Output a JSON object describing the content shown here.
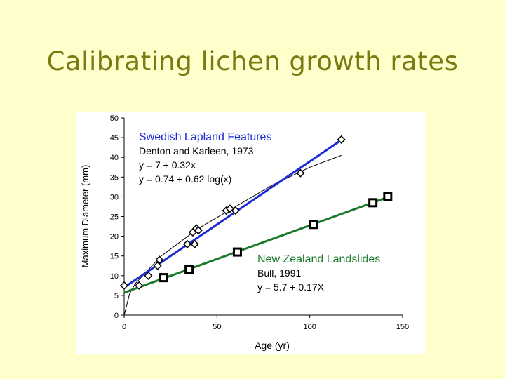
{
  "slide": {
    "title": "Calibrating lichen growth rates"
  },
  "chart_data": {
    "type": "scatter",
    "xlabel": "Age (yr)",
    "ylabel": "Maximum Diameter (mm)",
    "xlim": [
      0,
      150
    ],
    "ylim": [
      0,
      50
    ],
    "xticks": [
      "0",
      "50",
      "100",
      "150"
    ],
    "yticks": [
      "0",
      "5",
      "10",
      "15",
      "20",
      "25",
      "30",
      "35",
      "40",
      "45",
      "50"
    ],
    "grid": false,
    "series": [
      {
        "name": "Swedish Lapland Features",
        "marker": "diamond",
        "color": "#1a2bd6",
        "points": [
          [
            0,
            7.5
          ],
          [
            8,
            7.5
          ],
          [
            13,
            10
          ],
          [
            18,
            12.5
          ],
          [
            19,
            14
          ],
          [
            34,
            18
          ],
          [
            37,
            21
          ],
          [
            38,
            18
          ],
          [
            39,
            22
          ],
          [
            40,
            21.5
          ],
          [
            55,
            26.5
          ],
          [
            57,
            27
          ],
          [
            60,
            26.5
          ],
          [
            95,
            36
          ],
          [
            117,
            44.5
          ]
        ],
        "fit": {
          "x": [
            0,
            117
          ],
          "y": [
            7,
            44.4
          ]
        }
      },
      {
        "name": "New Zealand Landslides",
        "marker": "square",
        "color": "#1a7a2a",
        "points": [
          [
            21,
            9.5
          ],
          [
            35,
            11.5
          ],
          [
            61,
            16
          ],
          [
            102,
            23
          ],
          [
            134,
            28.5
          ],
          [
            142,
            30
          ]
        ],
        "fit": {
          "x": [
            0,
            142
          ],
          "y": [
            5.7,
            29.9
          ]
        }
      }
    ],
    "log_curve": {
      "x": [
        0,
        3,
        6,
        10,
        20,
        40,
        60,
        80,
        100,
        117
      ],
      "y": [
        0,
        5.5,
        8,
        10,
        15,
        22,
        27.5,
        33,
        37.5,
        40.5
      ]
    },
    "annotations": {
      "swedish": {
        "title": "Swedish Lapland Features",
        "line1": "Denton and Karleen, 1973",
        "line2": "y = 7 + 0.32x",
        "line3": "y = 0.74 + 0.62 log(x)"
      },
      "nz": {
        "title": "New Zealand Landslides",
        "line1": "Bull, 1991",
        "line2": "y = 5.7 + 0.17X"
      }
    }
  }
}
